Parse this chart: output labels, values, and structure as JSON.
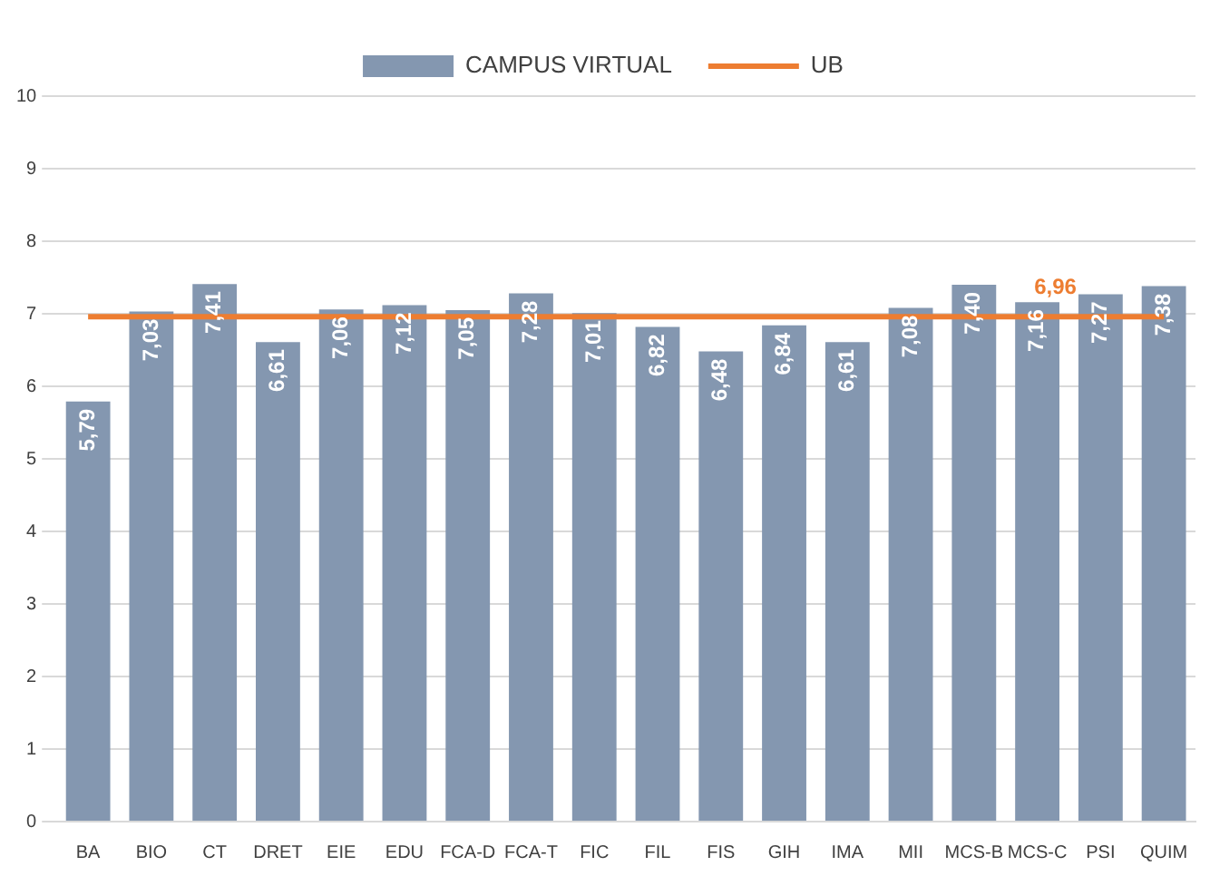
{
  "chart_data": {
    "type": "bar",
    "categories": [
      "BA",
      "BIO",
      "CT",
      "DRET",
      "EIE",
      "EDU",
      "FCA-D",
      "FCA-T",
      "FIC",
      "FIL",
      "FIS",
      "GIH",
      "IMA",
      "MII",
      "MCS-B",
      "MCS-C",
      "PSI",
      "QUIM"
    ],
    "series": [
      {
        "name": "CAMPUS VIRTUAL",
        "color": "#8497b0",
        "values": [
          5.79,
          7.03,
          7.41,
          6.61,
          7.06,
          7.12,
          7.05,
          7.28,
          7.01,
          6.82,
          6.48,
          6.84,
          6.61,
          7.08,
          7.4,
          7.16,
          7.27,
          7.38
        ],
        "value_labels": [
          "5,79",
          "7,03",
          "7,41",
          "6,61",
          "7,06",
          "7,12",
          "7,05",
          "7,28",
          "7,01",
          "6,82",
          "6,48",
          "6,84",
          "6,61",
          "7,08",
          "7,40",
          "7,16",
          "7,27",
          "7,38"
        ]
      },
      {
        "name": "UB",
        "type": "line",
        "color": "#ed7d31",
        "values": [
          6.96,
          6.96,
          6.96,
          6.96,
          6.96,
          6.96,
          6.96,
          6.96,
          6.96,
          6.96,
          6.96,
          6.96,
          6.96,
          6.96,
          6.96,
          6.96,
          6.96,
          6.96
        ],
        "value_labels": [
          null,
          null,
          null,
          null,
          null,
          null,
          null,
          null,
          null,
          null,
          null,
          null,
          null,
          null,
          null,
          "6,96",
          null,
          null
        ]
      }
    ],
    "ylim": [
      0,
      10
    ],
    "yticks": [
      0,
      1,
      2,
      3,
      4,
      5,
      6,
      7,
      8,
      9,
      10
    ],
    "grid": "y",
    "legend": "top",
    "marker": "none"
  }
}
